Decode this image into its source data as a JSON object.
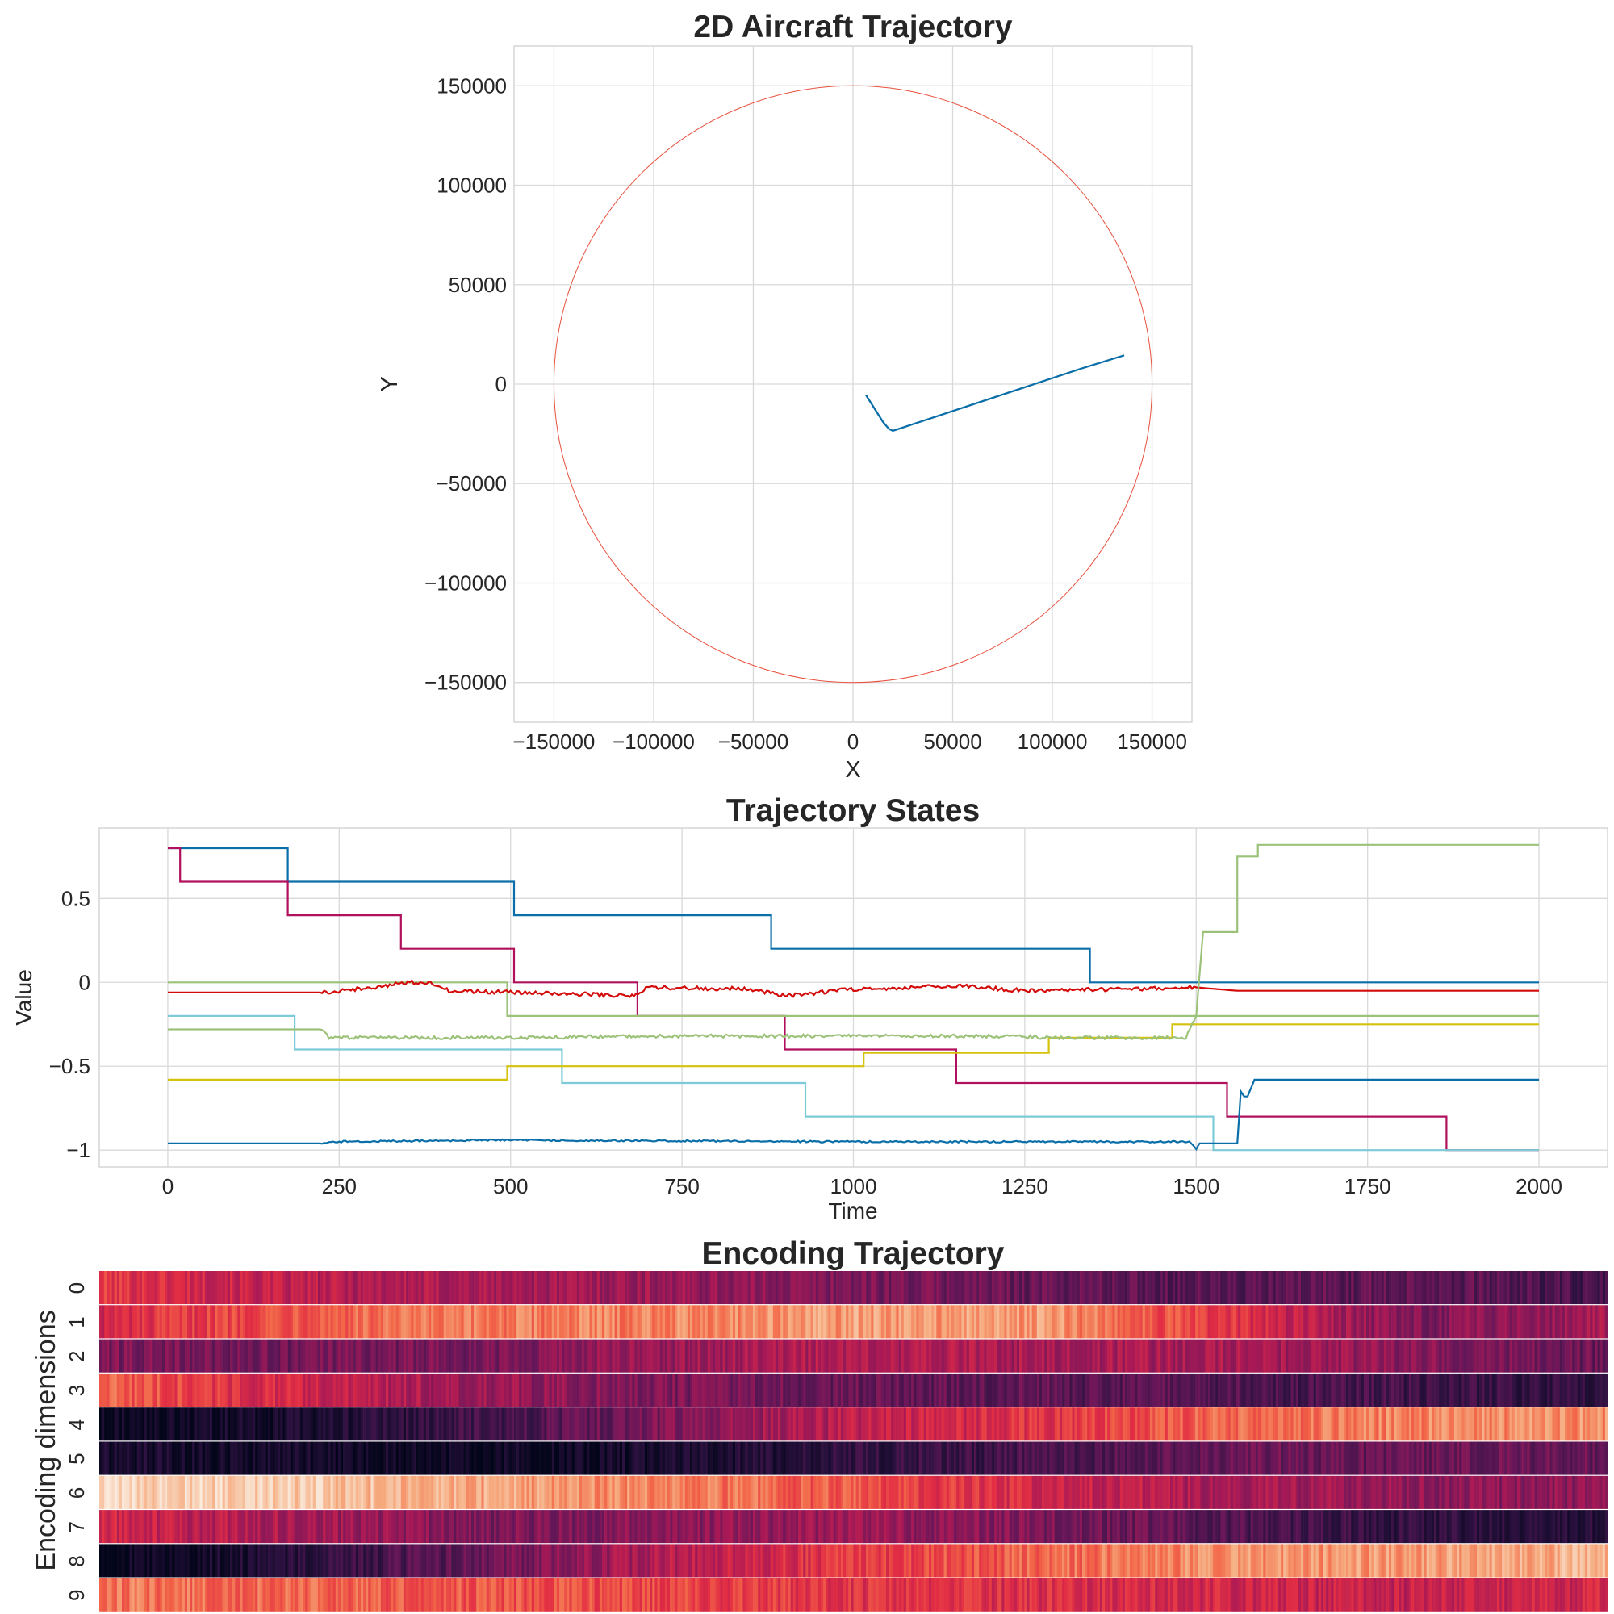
{
  "chart_data": [
    {
      "type": "line",
      "title": "2D Aircraft Trajectory",
      "xlabel": "X",
      "ylabel": "Y",
      "xlim": [
        -170000,
        170000
      ],
      "ylim": [
        -170000,
        170000
      ],
      "grid": true,
      "xticks": [
        -150000,
        -100000,
        -50000,
        0,
        50000,
        100000,
        150000
      ],
      "yticks": [
        -150000,
        -100000,
        -50000,
        0,
        50000,
        100000,
        150000
      ],
      "circle": {
        "center": [
          0,
          0
        ],
        "radius": 150000,
        "color": "#e8503c"
      },
      "series": [
        {
          "color": "#0a6fa8",
          "x": [
            6500,
            15000,
            18000,
            20000,
            115000,
            136000
          ],
          "y": [
            -5500,
            -19000,
            -22500,
            -23500,
            8000,
            14500
          ]
        }
      ]
    },
    {
      "type": "line",
      "title": "Trajectory States",
      "xlabel": "Time",
      "ylabel": "Value",
      "xlim": [
        -100,
        2100
      ],
      "ylim": [
        -1.1,
        0.92
      ],
      "grid": true,
      "xticks": [
        0,
        250,
        500,
        750,
        1000,
        1250,
        1500,
        1750,
        2000
      ],
      "yticks": [
        -1.0,
        -0.5,
        0.0,
        0.5
      ],
      "series": [
        {
          "color": "#0a6fa8",
          "x": [
            0,
            175,
            175,
            505,
            505,
            880,
            880,
            1345,
            1345,
            2000
          ],
          "y": [
            0.8,
            0.8,
            0.6,
            0.6,
            0.4,
            0.4,
            0.2,
            0.2,
            0.0,
            0.0
          ]
        },
        {
          "color": "#b0105c",
          "x": [
            0,
            18,
            18,
            175,
            175,
            340,
            340,
            505,
            505,
            685,
            685,
            900,
            900,
            1150,
            1150,
            1545,
            1545,
            1865,
            1865,
            2000
          ],
          "y": [
            0.8,
            0.8,
            0.6,
            0.6,
            0.4,
            0.4,
            0.2,
            0.2,
            0.0,
            0.0,
            -0.2,
            -0.2,
            -0.4,
            -0.4,
            -0.6,
            -0.6,
            -0.8,
            -0.8,
            -1.0,
            -1.0
          ]
        },
        {
          "color": "#9cc27a",
          "x": [
            0,
            495,
            495,
            2000
          ],
          "y": [
            0.0,
            0.0,
            -0.2,
            -0.2
          ]
        },
        {
          "color": "#7dcbd9",
          "x": [
            0,
            185,
            185,
            575,
            575,
            930,
            930,
            1525,
            1525,
            2000
          ],
          "y": [
            -0.2,
            -0.2,
            -0.4,
            -0.4,
            -0.6,
            -0.6,
            -0.8,
            -0.8,
            -1.0,
            -1.0
          ]
        },
        {
          "color": "#d4c20b",
          "x": [
            0,
            495,
            495,
            1015,
            1015,
            1285,
            1285,
            1465,
            1465,
            2000
          ],
          "y": [
            -0.58,
            -0.58,
            -0.5,
            -0.5,
            -0.42,
            -0.42,
            -0.33,
            -0.33,
            -0.25,
            -0.25
          ]
        },
        {
          "color": "#d40b0b",
          "noise": 0.012,
          "x": [
            0,
            225,
            300,
            350,
            380,
            410,
            500,
            600,
            680,
            700,
            850,
            900,
            1000,
            1150,
            1250,
            1400,
            1500,
            1560,
            2000
          ],
          "y": [
            -0.06,
            -0.06,
            -0.03,
            0.0,
            0.0,
            -0.05,
            -0.06,
            -0.07,
            -0.08,
            -0.03,
            -0.04,
            -0.08,
            -0.04,
            -0.02,
            -0.05,
            -0.04,
            -0.03,
            -0.05,
            -0.05
          ]
        },
        {
          "color": "#9cc27a",
          "noise": 0.01,
          "x": [
            0,
            225,
            235,
            500,
            700,
            900,
            1200,
            1300,
            1400,
            1485,
            1500,
            1510,
            1520,
            1540,
            1560,
            1560,
            1570,
            1575,
            1590,
            1590,
            2000
          ],
          "y": [
            -0.28,
            -0.28,
            -0.33,
            -0.33,
            -0.32,
            -0.32,
            -0.32,
            -0.33,
            -0.33,
            -0.33,
            -0.2,
            0.3,
            0.3,
            0.3,
            0.3,
            0.75,
            0.75,
            0.75,
            0.75,
            0.82,
            0.82
          ]
        },
        {
          "color": "#0a6fa8",
          "noise": 0.005,
          "x": [
            0,
            225,
            235,
            500,
            1000,
            1490,
            1500,
            1505,
            1515,
            1560,
            1565,
            1570,
            1575,
            1585,
            2000
          ],
          "y": [
            -0.96,
            -0.96,
            -0.95,
            -0.94,
            -0.95,
            -0.95,
            -0.99,
            -0.96,
            -0.96,
            -0.96,
            -0.65,
            -0.68,
            -0.68,
            -0.58,
            -0.58
          ]
        }
      ]
    },
    {
      "type": "heatmap",
      "title": "Encoding Trajectory",
      "ylabel": "Encoding dimensions",
      "yticklabels": [
        "0",
        "1",
        "2",
        "3",
        "4",
        "5",
        "6",
        "7",
        "8",
        "9"
      ],
      "n_columns": 600,
      "colormap": "rocket",
      "rows": [
        [
          0.62,
          0.5,
          0.45,
          0.42,
          0.35,
          0.3,
          0.25,
          0.3,
          0.2
        ],
        [
          0.55,
          0.7,
          0.75,
          0.78,
          0.82,
          0.82,
          0.6,
          0.35,
          0.45
        ],
        [
          0.35,
          0.32,
          0.35,
          0.42,
          0.48,
          0.45,
          0.45,
          0.38,
          0.3
        ],
        [
          0.72,
          0.55,
          0.42,
          0.35,
          0.3,
          0.28,
          0.25,
          0.2,
          0.15
        ],
        [
          0.03,
          0.08,
          0.2,
          0.35,
          0.5,
          0.6,
          0.72,
          0.78,
          0.8
        ],
        [
          0.08,
          0.06,
          0.03,
          0.08,
          0.15,
          0.22,
          0.3,
          0.3,
          0.3
        ],
        [
          0.95,
          0.93,
          0.85,
          0.78,
          0.68,
          0.55,
          0.45,
          0.4,
          0.38
        ],
        [
          0.55,
          0.45,
          0.35,
          0.38,
          0.42,
          0.35,
          0.25,
          0.15,
          0.12
        ],
        [
          0.02,
          0.12,
          0.3,
          0.48,
          0.62,
          0.72,
          0.8,
          0.82,
          0.88
        ],
        [
          0.75,
          0.72,
          0.68,
          0.65,
          0.6,
          0.58,
          0.55,
          0.52,
          0.55
        ]
      ]
    }
  ]
}
